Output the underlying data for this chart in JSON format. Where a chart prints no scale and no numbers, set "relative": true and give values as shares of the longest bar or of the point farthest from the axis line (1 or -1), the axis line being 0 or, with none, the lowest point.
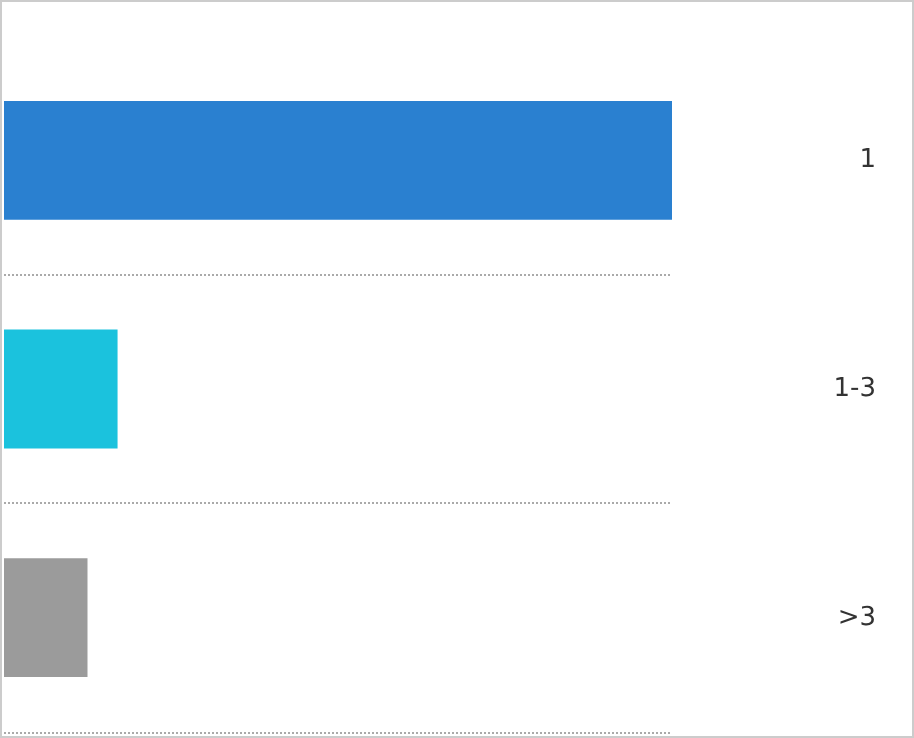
{
  "chart_data": {
    "type": "bar",
    "orientation": "horizontal",
    "relative": true,
    "categories": [
      "1",
      "1-3",
      ">3"
    ],
    "values": [
      1,
      0.17,
      0.125
    ],
    "colors": [
      "#2a80d0",
      "#1bc2dd",
      "#9b9b9b"
    ],
    "grid": "y"
  }
}
